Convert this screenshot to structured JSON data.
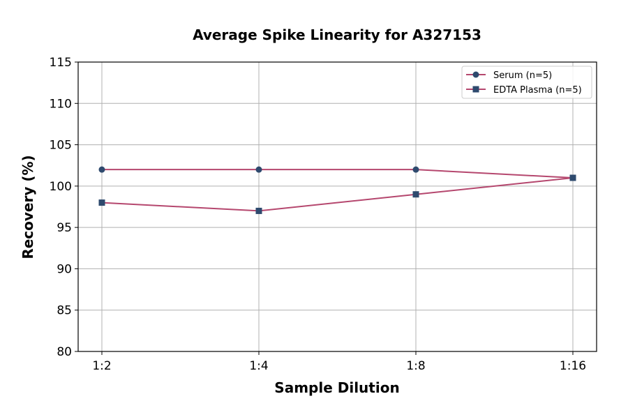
{
  "chart_data": {
    "type": "line",
    "title": "Average Spike Linearity for A327153",
    "xlabel": "Sample Dilution",
    "ylabel": "Recovery (%)",
    "categories": [
      "1:2",
      "1:4",
      "1:8",
      "1:16"
    ],
    "ylim": [
      80,
      115
    ],
    "yticks": [
      80,
      85,
      90,
      95,
      100,
      105,
      110,
      115
    ],
    "grid": true,
    "legend_position": "top-right",
    "series": [
      {
        "name": "Serum (n=5)",
        "values": [
          102,
          102,
          102,
          101
        ],
        "marker": "circle",
        "line_color": "#b5476e",
        "marker_color": "#2e4a6e"
      },
      {
        "name": "EDTA Plasma (n=5)",
        "values": [
          98,
          97,
          99,
          101
        ],
        "marker": "square",
        "line_color": "#b5476e",
        "marker_color": "#2e4a6e"
      }
    ]
  }
}
